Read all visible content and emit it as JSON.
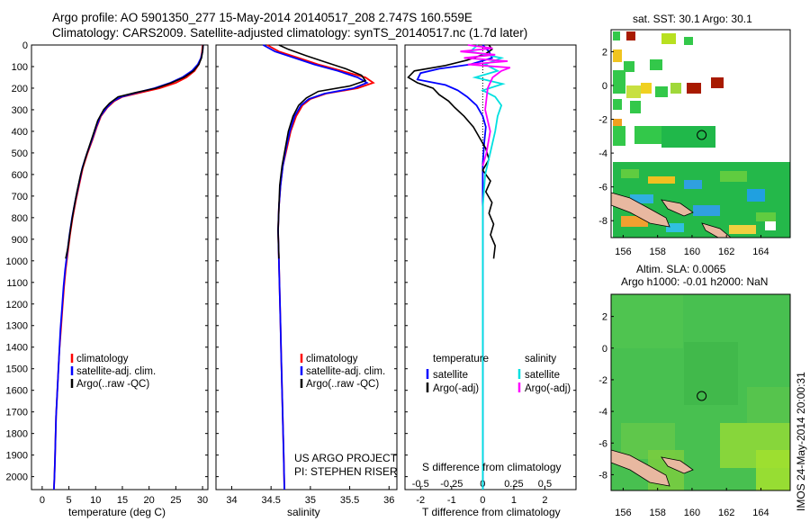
{
  "header": {
    "line1": "Argo profile: AO 5901350_277 15-May-2014 20140517_208 2.747S 160.559E",
    "line2": "Climatology: CARS2009. Satellite-adjusted climatology: synTS_20140517.nc (1.7d later)"
  },
  "chart_data": [
    {
      "type": "line",
      "id": "temperature_profile",
      "xlabel": "temperature (deg C)",
      "ylabel": "",
      "xlim": [
        -2,
        31
      ],
      "ylim": [
        2060,
        0
      ],
      "x_ticks": [
        0,
        5,
        10,
        15,
        20,
        25,
        30
      ],
      "y_ticks": [
        0,
        100,
        200,
        300,
        400,
        500,
        600,
        700,
        800,
        900,
        1000,
        1100,
        1200,
        1300,
        1400,
        1500,
        1600,
        1700,
        1800,
        1900,
        2000
      ],
      "legend": [
        "climatology",
        "satellite-adj. clim.",
        "Argo(..raw -QC)"
      ],
      "series": [
        {
          "name": "climatology",
          "color": "#ff0000",
          "points": [
            [
              30.0,
              0
            ],
            [
              29.9,
              30
            ],
            [
              29.7,
              60
            ],
            [
              29.3,
              90
            ],
            [
              28.5,
              120
            ],
            [
              27.0,
              150
            ],
            [
              25.0,
              175
            ],
            [
              22.0,
              200
            ],
            [
              18.5,
              220
            ],
            [
              15.0,
              240
            ],
            [
              13.5,
              260
            ],
            [
              12.2,
              290
            ],
            [
              11.0,
              330
            ],
            [
              10.2,
              380
            ],
            [
              9.4,
              440
            ],
            [
              8.5,
              500
            ],
            [
              7.6,
              570
            ],
            [
              6.9,
              650
            ],
            [
              6.3,
              720
            ],
            [
              5.7,
              800
            ],
            [
              5.2,
              880
            ],
            [
              4.8,
              960
            ],
            [
              4.4,
              1040
            ],
            [
              4.1,
              1120
            ],
            [
              3.8,
              1220
            ],
            [
              3.5,
              1320
            ],
            [
              3.2,
              1420
            ],
            [
              3.0,
              1520
            ],
            [
              2.8,
              1620
            ],
            [
              2.6,
              1720
            ],
            [
              2.5,
              1820
            ],
            [
              2.4,
              1920
            ],
            [
              2.3,
              2000
            ],
            [
              2.2,
              2060
            ]
          ]
        },
        {
          "name": "satellite-adj. clim.",
          "color": "#0000ff",
          "points": [
            [
              30.1,
              0
            ],
            [
              30.0,
              30
            ],
            [
              29.7,
              60
            ],
            [
              29.1,
              90
            ],
            [
              28.0,
              120
            ],
            [
              26.2,
              150
            ],
            [
              24.0,
              175
            ],
            [
              21.0,
              200
            ],
            [
              17.8,
              220
            ],
            [
              14.8,
              240
            ],
            [
              13.3,
              260
            ],
            [
              12.1,
              290
            ],
            [
              10.9,
              330
            ],
            [
              10.1,
              380
            ],
            [
              9.3,
              440
            ],
            [
              8.4,
              500
            ],
            [
              7.5,
              570
            ],
            [
              6.8,
              650
            ],
            [
              6.2,
              720
            ],
            [
              5.6,
              800
            ],
            [
              5.1,
              880
            ],
            [
              4.7,
              960
            ],
            [
              4.3,
              1040
            ],
            [
              4.0,
              1120
            ],
            [
              3.7,
              1220
            ],
            [
              3.4,
              1320
            ],
            [
              3.2,
              1420
            ],
            [
              3.0,
              1520
            ],
            [
              2.8,
              1620
            ],
            [
              2.6,
              1720
            ],
            [
              2.5,
              1820
            ],
            [
              2.4,
              1920
            ],
            [
              2.3,
              2000
            ],
            [
              2.2,
              2060
            ]
          ]
        },
        {
          "name": "Argo(..raw -QC)",
          "color": "#000000",
          "points": [
            [
              30.1,
              0
            ],
            [
              30.0,
              30
            ],
            [
              29.8,
              60
            ],
            [
              29.3,
              90
            ],
            [
              28.3,
              120
            ],
            [
              26.5,
              150
            ],
            [
              24.2,
              175
            ],
            [
              21.3,
              200
            ],
            [
              17.5,
              220
            ],
            [
              14.2,
              240
            ],
            [
              12.6,
              270
            ],
            [
              11.5,
              300
            ],
            [
              10.4,
              350
            ],
            [
              9.6,
              410
            ],
            [
              8.8,
              470
            ],
            [
              8.0,
              530
            ],
            [
              7.2,
              600
            ],
            [
              6.5,
              680
            ],
            [
              5.9,
              760
            ],
            [
              5.3,
              850
            ],
            [
              4.8,
              940
            ],
            [
              4.4,
              990
            ]
          ]
        }
      ]
    },
    {
      "type": "line",
      "id": "salinity_profile",
      "xlabel": "salinity",
      "ylabel": "",
      "xlim": [
        33.8,
        36.1
      ],
      "ylim": [
        2060,
        0
      ],
      "x_ticks": [
        34,
        34.5,
        35,
        35.5,
        36
      ],
      "legend": [
        "climatology",
        "satellite-adj. clim.",
        "Argo(..raw -QC)"
      ],
      "series": [
        {
          "name": "climatology",
          "color": "#ff0000",
          "points": [
            [
              34.45,
              0
            ],
            [
              34.6,
              30
            ],
            [
              34.85,
              60
            ],
            [
              35.1,
              90
            ],
            [
              35.4,
              120
            ],
            [
              35.7,
              150
            ],
            [
              35.8,
              175
            ],
            [
              35.6,
              200
            ],
            [
              35.2,
              225
            ],
            [
              35.0,
              250
            ],
            [
              34.9,
              280
            ],
            [
              34.82,
              330
            ],
            [
              34.75,
              400
            ],
            [
              34.7,
              480
            ],
            [
              34.65,
              560
            ],
            [
              34.62,
              650
            ],
            [
              34.6,
              750
            ],
            [
              34.59,
              860
            ],
            [
              34.6,
              1000
            ],
            [
              34.61,
              1150
            ],
            [
              34.62,
              1300
            ],
            [
              34.63,
              1450
            ],
            [
              34.64,
              1600
            ],
            [
              34.65,
              1750
            ],
            [
              34.66,
              1900
            ],
            [
              34.67,
              2060
            ]
          ]
        },
        {
          "name": "satellite-adj. clim.",
          "color": "#0000ff",
          "points": [
            [
              34.4,
              0
            ],
            [
              34.55,
              30
            ],
            [
              34.8,
              60
            ],
            [
              35.05,
              90
            ],
            [
              35.35,
              120
            ],
            [
              35.6,
              150
            ],
            [
              35.72,
              175
            ],
            [
              35.55,
              200
            ],
            [
              35.18,
              225
            ],
            [
              34.98,
              250
            ],
            [
              34.88,
              280
            ],
            [
              34.8,
              330
            ],
            [
              34.74,
              400
            ],
            [
              34.69,
              480
            ],
            [
              34.65,
              560
            ],
            [
              34.62,
              650
            ],
            [
              34.6,
              750
            ],
            [
              34.59,
              860
            ],
            [
              34.6,
              1000
            ],
            [
              34.61,
              1150
            ],
            [
              34.62,
              1300
            ],
            [
              34.63,
              1450
            ],
            [
              34.64,
              1600
            ],
            [
              34.65,
              1750
            ],
            [
              34.66,
              1900
            ],
            [
              34.67,
              2060
            ]
          ]
        },
        {
          "name": "Argo(..raw -QC)",
          "color": "#000000",
          "points": [
            [
              34.6,
              0
            ],
            [
              34.72,
              20
            ],
            [
              34.95,
              50
            ],
            [
              35.2,
              80
            ],
            [
              35.45,
              110
            ],
            [
              35.65,
              140
            ],
            [
              35.7,
              165
            ],
            [
              35.5,
              190
            ],
            [
              35.1,
              215
            ],
            [
              34.95,
              245
            ],
            [
              34.85,
              280
            ],
            [
              34.78,
              330
            ],
            [
              34.72,
              400
            ],
            [
              34.68,
              480
            ],
            [
              34.64,
              560
            ],
            [
              34.61,
              650
            ],
            [
              34.6,
              750
            ],
            [
              34.59,
              860
            ],
            [
              34.6,
              990
            ]
          ]
        }
      ]
    },
    {
      "type": "line",
      "id": "difference_profile",
      "xlabel": "T difference from climatology",
      "xlabel_top": "S difference from climatology",
      "xlim": [
        -2.5,
        3.0
      ],
      "ylim": [
        2060,
        0
      ],
      "x_ticks": [
        -2,
        -1,
        0,
        1,
        2
      ],
      "top_ticks": [
        "-0.5",
        "-0.25",
        "0",
        "0.25",
        "0.5"
      ],
      "legend_temperature_title": "temperature",
      "legend_salinity_title": "salinity",
      "legend": [
        "satellite",
        "Argo(-adj)",
        "satellite",
        "Argo(-adj)"
      ],
      "series": [
        {
          "name": "temperature satellite",
          "color": "#0000ff",
          "points": [
            [
              0,
              0
            ],
            [
              0.2,
              30
            ],
            [
              0.3,
              60
            ],
            [
              -0.4,
              90
            ],
            [
              -1.4,
              110
            ],
            [
              -2.0,
              130
            ],
            [
              -2.1,
              160
            ],
            [
              -1.2,
              185
            ],
            [
              -0.8,
              210
            ],
            [
              -0.5,
              240
            ],
            [
              -0.2,
              280
            ],
            [
              0,
              330
            ],
            [
              0.1,
              380
            ],
            [
              0.05,
              450
            ],
            [
              0,
              550
            ],
            [
              0,
              700
            ],
            [
              0,
              900
            ],
            [
              0,
              1200
            ],
            [
              0,
              1600
            ],
            [
              0,
              2060
            ]
          ]
        },
        {
          "name": "temperature Argo(-adj)",
          "color": "#000000",
          "points": [
            [
              0.2,
              0
            ],
            [
              0.3,
              20
            ],
            [
              0.1,
              40
            ],
            [
              -0.5,
              70
            ],
            [
              -1.2,
              95
            ],
            [
              -2.2,
              120
            ],
            [
              -2.4,
              150
            ],
            [
              -2.1,
              175
            ],
            [
              -1.6,
              200
            ],
            [
              -1.4,
              230
            ],
            [
              -1.1,
              260
            ],
            [
              -0.9,
              290
            ],
            [
              -0.6,
              330
            ],
            [
              -0.3,
              380
            ],
            [
              -0.1,
              430
            ],
            [
              0.1,
              480
            ],
            [
              0.2,
              530
            ],
            [
              0.0,
              580
            ],
            [
              0.25,
              630
            ],
            [
              0.1,
              680
            ],
            [
              0.3,
              730
            ],
            [
              0.2,
              780
            ],
            [
              0.35,
              830
            ],
            [
              0.25,
              880
            ],
            [
              0.4,
              930
            ],
            [
              0.35,
              990
            ]
          ]
        },
        {
          "name": "salinity satellite",
          "color": "#00e0e0",
          "points": [
            [
              -0.04,
              0
            ],
            [
              -0.1,
              30
            ],
            [
              0.15,
              60
            ],
            [
              0.02,
              90
            ],
            [
              0.12,
              120
            ],
            [
              -0.06,
              150
            ],
            [
              0.16,
              180
            ],
            [
              0.0,
              210
            ],
            [
              0.1,
              240
            ],
            [
              0.15,
              280
            ],
            [
              0.12,
              330
            ],
            [
              0.1,
              400
            ],
            [
              0.06,
              500
            ],
            [
              0.02,
              600
            ],
            [
              0,
              750
            ],
            [
              0,
              1000
            ],
            [
              0,
              1400
            ],
            [
              0,
              2060
            ]
          ]
        },
        {
          "name": "salinity Argo(-adj)",
          "color": "#ff00ff",
          "points": [
            [
              -0.12,
              0
            ],
            [
              0.08,
              15
            ],
            [
              -0.18,
              30
            ],
            [
              0.1,
              45
            ],
            [
              -0.15,
              60
            ],
            [
              0.2,
              75
            ],
            [
              -0.12,
              90
            ],
            [
              0.22,
              105
            ],
            [
              0.15,
              120
            ],
            [
              0.08,
              150
            ],
            [
              0.04,
              200
            ],
            [
              0.02,
              300
            ],
            [
              0.06,
              400
            ],
            [
              0.03,
              500
            ],
            [
              0,
              560
            ]
          ]
        }
      ]
    }
  ],
  "maps": {
    "sst_title": "sat. SST: 30.1 Argo: 30.1",
    "sla_title_line1": "Altim. SLA: 0.0065",
    "sla_title_line2": "Argo h1000: -0.01 h2000: NaN",
    "x_ticks": [
      "156",
      "158",
      "160",
      "162",
      "164"
    ],
    "y_ticks": [
      "2",
      "0",
      "-2",
      "-4",
      "-6",
      "-8"
    ],
    "y_ticks_sla": [
      "2",
      "0",
      "-2",
      "-4",
      "-6",
      "-8"
    ]
  },
  "annotations": {
    "project_line1": "US ARGO PROJECT",
    "project_line2": "PI: STEPHEN RISER",
    "imos_stamp": "IMOS 24-May-2014 20:00:31"
  }
}
